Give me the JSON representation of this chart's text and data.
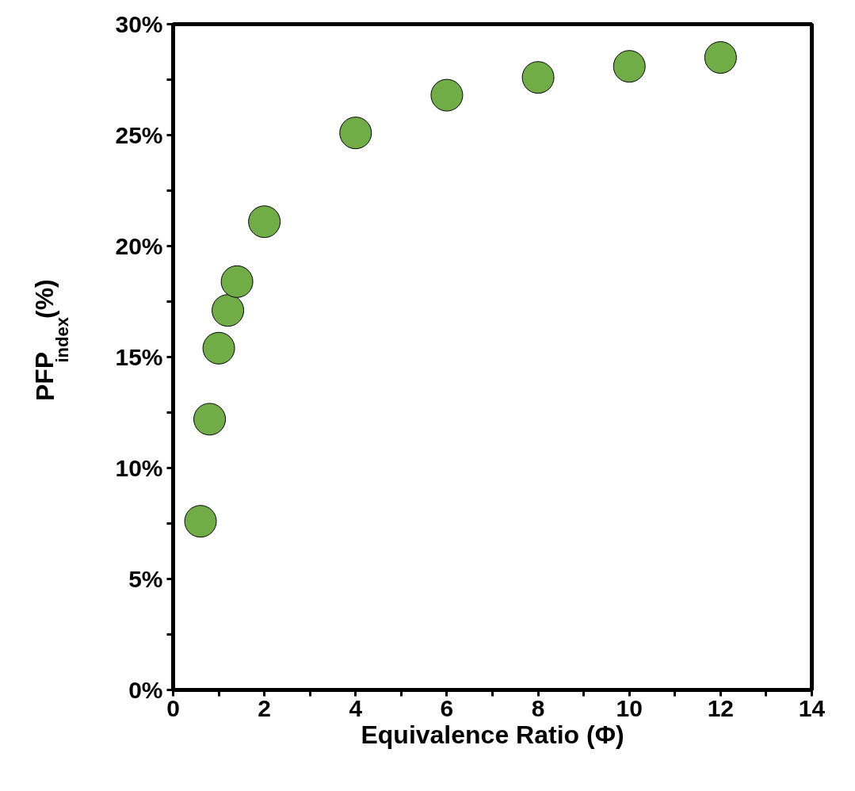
{
  "chart_data": {
    "type": "scatter",
    "xlabel": "Equivalence Ratio (Φ)",
    "ylabel": "PFP$_{index}$ (%)",
    "x": [
      0.6,
      0.8,
      1.0,
      1.2,
      1.4,
      2,
      4,
      6,
      8,
      10,
      12
    ],
    "series": [
      {
        "color": "#70ad47",
        "values": [
          7.6,
          12.2,
          15.4,
          17.1,
          18.4,
          21.1,
          25.1,
          26.8,
          27.6,
          28.1,
          28.5
        ]
      }
    ],
    "xlim": [
      0,
      14
    ],
    "ylim": [
      0,
      30
    ],
    "xticks": [
      0,
      {
        "value": 1,
        "label": null
      },
      2,
      {
        "value": 3,
        "label": null
      },
      4,
      {
        "value": 5,
        "label": null
      },
      6,
      {
        "value": 7,
        "label": null
      },
      8,
      {
        "value": 9,
        "label": null
      },
      10,
      {
        "value": 11,
        "label": null
      },
      12,
      {
        "value": 13,
        "label": null
      },
      14
    ],
    "yticks": [
      {
        "value": 0,
        "label": "0%"
      },
      {
        "value": 2.5,
        "label": null
      },
      {
        "value": 5,
        "label": "5%"
      },
      {
        "value": 7.5,
        "label": null
      },
      {
        "value": 10,
        "label": "10%"
      },
      {
        "value": 12.5,
        "label": null
      },
      {
        "value": 15,
        "label": "15%"
      },
      {
        "value": 17.5,
        "label": null
      },
      {
        "value": 20,
        "label": "20%"
      },
      {
        "value": 22.5,
        "label": null
      },
      {
        "value": 25,
        "label": "25%"
      },
      {
        "value": 27.5,
        "label": null
      },
      {
        "value": 30,
        "label": "30%"
      }
    ],
    "marker": "circle",
    "grid": false
  }
}
